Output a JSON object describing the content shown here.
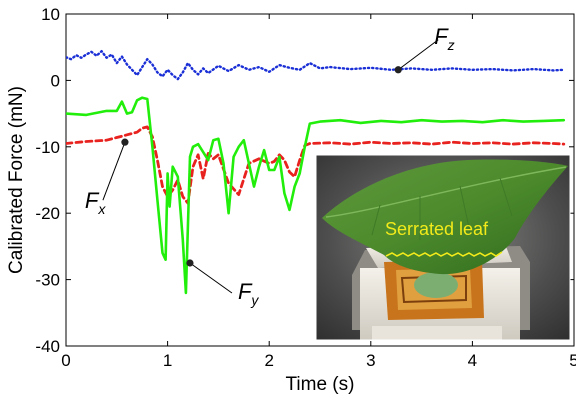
{
  "chart_data": {
    "type": "line",
    "xlabel": "Time (s)",
    "ylabel": "Calibrated Force (mN)",
    "xlim": [
      0,
      5
    ],
    "ylim": [
      -40,
      10
    ],
    "xticks": [
      "0",
      "1",
      "2",
      "3",
      "4",
      "5"
    ],
    "yticks": [
      "10",
      "0",
      "-10",
      "-20",
      "-30",
      "-40"
    ],
    "grid": false,
    "series": [
      {
        "name": "Fz",
        "color": "#1a2fd6",
        "style": "dotted",
        "x": [
          0,
          0.05,
          0.1,
          0.15,
          0.2,
          0.25,
          0.3,
          0.35,
          0.4,
          0.45,
          0.5,
          0.55,
          0.6,
          0.65,
          0.7,
          0.75,
          0.8,
          0.85,
          0.9,
          0.95,
          1.0,
          1.05,
          1.1,
          1.15,
          1.2,
          1.25,
          1.3,
          1.35,
          1.4,
          1.5,
          1.6,
          1.7,
          1.8,
          1.9,
          2.0,
          2.1,
          2.2,
          2.3,
          2.4,
          2.5,
          2.6,
          2.8,
          3.0,
          3.2,
          3.4,
          3.6,
          3.8,
          4.0,
          4.2,
          4.4,
          4.6,
          4.8,
          4.9
        ],
        "y": [
          3.5,
          3.2,
          3.8,
          3.4,
          3.9,
          4.3,
          3.7,
          4.4,
          3.4,
          3.9,
          2.6,
          3.6,
          2.4,
          1.6,
          0.8,
          2.0,
          3.2,
          2.4,
          1.2,
          0.6,
          1.6,
          0.8,
          0.2,
          1.2,
          2.6,
          1.6,
          0.9,
          1.8,
          1.1,
          2.2,
          1.4,
          2.3,
          1.6,
          2.0,
          1.3,
          2.3,
          1.9,
          1.6,
          2.6,
          1.8,
          2.0,
          1.7,
          1.9,
          1.6,
          1.8,
          1.6,
          1.8,
          1.6,
          1.7,
          1.5,
          1.7,
          1.5,
          1.6
        ]
      },
      {
        "name": "Fx",
        "color": "#e8231f",
        "style": "dashed",
        "x": [
          0,
          0.2,
          0.4,
          0.5,
          0.55,
          0.6,
          0.7,
          0.75,
          0.8,
          0.85,
          0.9,
          0.95,
          1.0,
          1.05,
          1.1,
          1.15,
          1.2,
          1.25,
          1.3,
          1.35,
          1.4,
          1.45,
          1.5,
          1.6,
          1.7,
          1.8,
          1.9,
          2.0,
          2.05,
          2.1,
          2.15,
          2.2,
          2.25,
          2.3,
          2.35,
          2.4,
          2.6,
          2.8,
          3.0,
          3.2,
          3.4,
          3.6,
          3.8,
          4.0,
          4.2,
          4.4,
          4.6,
          4.8,
          4.9
        ],
        "y": [
          -9.5,
          -9.2,
          -9.0,
          -8.6,
          -8.4,
          -8.2,
          -7.8,
          -7.2,
          -7.0,
          -8.5,
          -12.0,
          -16.0,
          -17.5,
          -16.5,
          -15.0,
          -17.5,
          -18.5,
          -13.0,
          -11.2,
          -14.8,
          -11.0,
          -11.8,
          -11.2,
          -15.5,
          -17.2,
          -12.5,
          -11.8,
          -12.5,
          -12.2,
          -11.2,
          -12.0,
          -13.8,
          -14.5,
          -12.0,
          -9.8,
          -9.5,
          -9.4,
          -9.6,
          -9.3,
          -9.5,
          -9.4,
          -9.6,
          -9.3,
          -9.5,
          -9.4,
          -9.6,
          -9.4,
          -9.5,
          -9.6
        ]
      },
      {
        "name": "Fy",
        "color": "#22ee0c",
        "style": "solid",
        "x": [
          0,
          0.2,
          0.4,
          0.5,
          0.55,
          0.6,
          0.65,
          0.7,
          0.75,
          0.8,
          0.85,
          0.9,
          0.95,
          0.98,
          1.0,
          1.02,
          1.05,
          1.1,
          1.15,
          1.18,
          1.22,
          1.25,
          1.3,
          1.4,
          1.45,
          1.5,
          1.55,
          1.6,
          1.65,
          1.7,
          1.75,
          1.8,
          1.85,
          1.9,
          1.95,
          2.0,
          2.05,
          2.1,
          2.15,
          2.2,
          2.25,
          2.3,
          2.35,
          2.4,
          2.5,
          2.7,
          2.9,
          3.1,
          3.3,
          3.5,
          3.7,
          3.9,
          4.1,
          4.3,
          4.5,
          4.7,
          4.9
        ],
        "y": [
          -5.0,
          -5.2,
          -4.6,
          -4.6,
          -3.2,
          -5.0,
          -4.8,
          -3.0,
          -2.6,
          -2.8,
          -10.0,
          -18.0,
          -26.0,
          -27.0,
          -14.0,
          -19.0,
          -13.0,
          -14.5,
          -24.0,
          -32.0,
          -11.5,
          -10.0,
          -9.6,
          -12.0,
          -9.0,
          -8.8,
          -12.5,
          -20.0,
          -11.5,
          -10.0,
          -9.0,
          -12.5,
          -16.0,
          -13.0,
          -10.5,
          -13.5,
          -13.5,
          -11.5,
          -17.0,
          -19.5,
          -16.0,
          -14.0,
          -10.0,
          -6.5,
          -6.2,
          -6.0,
          -6.4,
          -6.1,
          -6.3,
          -6.0,
          -6.2,
          -6.1,
          -6.3,
          -6.0,
          -6.2,
          -6.1,
          -6.0
        ]
      }
    ],
    "annotations": [
      {
        "label": "F",
        "sub": "z",
        "series": "Fz",
        "x": 3.27,
        "y": 1.6
      },
      {
        "label": "F",
        "sub": "x",
        "series": "Fx",
        "x": 0.58,
        "y": -9.3
      },
      {
        "label": "F",
        "sub": "y",
        "series": "Fy",
        "x": 1.22,
        "y": -27.5
      }
    ],
    "inset": {
      "caption": "Serrated leaf",
      "caption_color": "#f2ea1a"
    }
  }
}
